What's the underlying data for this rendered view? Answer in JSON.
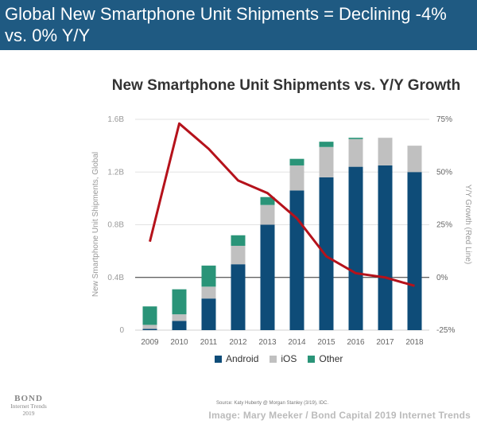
{
  "header": {
    "title": "Global New Smartphone Unit Shipments = Declining -4% vs. 0% Y/Y"
  },
  "chart_data": {
    "type": "bar",
    "title": "New Smartphone Unit Shipments vs. Y/Y Growth",
    "categories": [
      "2009",
      "2010",
      "2011",
      "2012",
      "2013",
      "2014",
      "2015",
      "2016",
      "2017",
      "2018"
    ],
    "series": [
      {
        "name": "Android",
        "values": [
          0.01,
          0.07,
          0.24,
          0.5,
          0.8,
          1.06,
          1.16,
          1.24,
          1.25,
          1.2
        ]
      },
      {
        "name": "iOS",
        "values": [
          0.03,
          0.05,
          0.09,
          0.14,
          0.15,
          0.19,
          0.23,
          0.21,
          0.21,
          0.2
        ]
      },
      {
        "name": "Other",
        "values": [
          0.14,
          0.19,
          0.16,
          0.08,
          0.06,
          0.05,
          0.04,
          0.01,
          0.0,
          0.0
        ]
      }
    ],
    "line": {
      "name": "Y/Y Growth",
      "values": [
        17,
        73,
        61,
        46,
        40,
        28,
        10,
        2,
        0,
        -4
      ]
    },
    "ylabel": "New Smartphone Unit Shipments, Global",
    "y2label": "Y/Y Growth (Red Line)",
    "ylim": [
      0,
      1.6
    ],
    "y2lim": [
      -25,
      75
    ],
    "yticks": [
      "0",
      "0.4B",
      "0.8B",
      "1.2B",
      "1.6B"
    ],
    "y2ticks": [
      "-25%",
      "0%",
      "25%",
      "50%",
      "75%"
    ],
    "colors": {
      "Android": "#0e4c78",
      "iOS": "#c0c0c0",
      "Other": "#2a9478",
      "line": "#b5121b"
    }
  },
  "legend": {
    "android": "Android",
    "ios": "iOS",
    "other": "Other"
  },
  "footer": {
    "source": "Source: Katy Huberty @ Morgan Stanley (3/19), IDC.",
    "watermark": "Image: Mary Meeker / Bond Capital 2019 Internet Trends",
    "logo_brand": "BOND",
    "logo_line1": "Internet Trends",
    "logo_line2": "2019"
  }
}
